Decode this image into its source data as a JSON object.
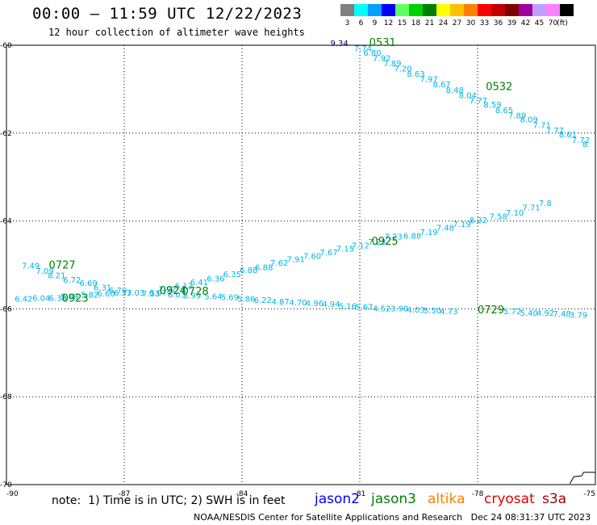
{
  "header": {
    "title": "00:00 – 11:59 UTC 12/22/2023",
    "subtitle": "12 hour collection of altimeter wave heights"
  },
  "colorbar": {
    "unit": "(ft)",
    "bins": [
      {
        "label": "3",
        "color": "#808080"
      },
      {
        "label": "6",
        "color": "#00ffff"
      },
      {
        "label": "9",
        "color": "#00a0ff"
      },
      {
        "label": "12",
        "color": "#0000ff"
      },
      {
        "label": "15",
        "color": "#60ff60"
      },
      {
        "label": "18",
        "color": "#00d000"
      },
      {
        "label": "21",
        "color": "#008000"
      },
      {
        "label": "24",
        "color": "#ffff00"
      },
      {
        "label": "27",
        "color": "#ffc000"
      },
      {
        "label": "30",
        "color": "#ff8000"
      },
      {
        "label": "33",
        "color": "#ff0000"
      },
      {
        "label": "36",
        "color": "#c00000"
      },
      {
        "label": "39",
        "color": "#800000"
      },
      {
        "label": "42",
        "color": "#a000a0"
      },
      {
        "label": "45",
        "color": "#c0a0ff"
      },
      {
        "label": "70",
        "color": "#ff80ff"
      },
      {
        "label": "",
        "color": "#000000"
      }
    ]
  },
  "map": {
    "lon_range": [
      -90,
      -75
    ],
    "lat_range": [
      -70,
      -60
    ],
    "lon_ticks": [
      "-90",
      "-87",
      "-84",
      "-81",
      "-78",
      "-75"
    ],
    "lat_ticks": [
      "-60",
      "-62",
      "-64",
      "-66",
      "-68",
      "-70"
    ],
    "grid": "dotted",
    "colors": {
      "cyan": "#00b4e6",
      "green": "#008000",
      "navy": "#000080"
    }
  },
  "tracks": [
    {
      "name": "0531-0532 track",
      "time_labels": [
        {
          "text": "0531",
          "lon": -80.76,
          "lat": -60.02
        },
        {
          "text": "0532",
          "lon": -77.79,
          "lat": -61.02
        }
      ],
      "first_value": {
        "text": "9.34",
        "lon": -81.75,
        "lat": -60.02,
        "color": "navy"
      },
      "points": [
        {
          "v": "7.74",
          "lon": -81.15,
          "lat": -60.14
        },
        {
          "v": "6.80",
          "lon": -80.91,
          "lat": -60.24
        },
        {
          "v": "7.92",
          "lon": -80.67,
          "lat": -60.36
        },
        {
          "v": "7.89",
          "lon": -80.4,
          "lat": -60.48
        },
        {
          "v": "7.20",
          "lon": -80.13,
          "lat": -60.6
        },
        {
          "v": "8.63",
          "lon": -79.8,
          "lat": -60.72
        },
        {
          "v": "7.97",
          "lon": -79.47,
          "lat": -60.84
        },
        {
          "v": "8.67",
          "lon": -79.14,
          "lat": -60.96
        },
        {
          "v": "8.48",
          "lon": -78.81,
          "lat": -61.08
        },
        {
          "v": "8.04",
          "lon": -78.48,
          "lat": -61.2
        },
        {
          "v": "7.77",
          "lon": -78.21,
          "lat": -61.32
        },
        {
          "v": "8.59",
          "lon": -77.85,
          "lat": -61.42
        },
        {
          "v": "8.65",
          "lon": -77.55,
          "lat": -61.54
        },
        {
          "v": "7.89",
          "lon": -77.22,
          "lat": -61.66
        },
        {
          "v": "8.09",
          "lon": -76.92,
          "lat": -61.76
        },
        {
          "v": "7.71",
          "lon": -76.59,
          "lat": -61.88
        },
        {
          "v": "7.77",
          "lon": -76.26,
          "lat": -62.0
        },
        {
          "v": "8.61",
          "lon": -75.93,
          "lat": -62.1
        },
        {
          "v": "7.72",
          "lon": -75.6,
          "lat": -62.22
        },
        {
          "v": "8.",
          "lon": -75.33,
          "lat": -62.32
        }
      ]
    },
    {
      "name": "0727-0728 track",
      "time_labels": [
        {
          "text": "0727",
          "lon": -88.92,
          "lat": -65.08
        },
        {
          "text": "0728",
          "lon": -85.53,
          "lat": -65.68
        }
      ],
      "points": [
        {
          "v": "7.49",
          "lon": -89.61,
          "lat": -65.08
        },
        {
          "v": "7.09",
          "lon": -89.25,
          "lat": -65.2
        },
        {
          "v": "8.21",
          "lon": -88.95,
          "lat": -65.3
        },
        {
          "v": "6.72",
          "lon": -88.56,
          "lat": -65.4
        },
        {
          "v": "6.69",
          "lon": -88.14,
          "lat": -65.48
        },
        {
          "v": "6.31",
          "lon": -87.78,
          "lat": -65.58
        },
        {
          "v": "6.70",
          "lon": -87.39,
          "lat": -65.64
        },
        {
          "v": "7.03",
          "lon": -86.94,
          "lat": -65.7
        },
        {
          "v": "7.33",
          "lon": -86.55,
          "lat": -65.72
        },
        {
          "v": "7.92",
          "lon": -86.13,
          "lat": -65.62
        },
        {
          "v": "6.12",
          "lon": -85.71,
          "lat": -65.54
        },
        {
          "v": "6.41",
          "lon": -85.32,
          "lat": -65.46
        },
        {
          "v": "6.36",
          "lon": -84.9,
          "lat": -65.38
        },
        {
          "v": "6.35",
          "lon": -84.48,
          "lat": -65.28
        },
        {
          "v": "6.88",
          "lon": -84.06,
          "lat": -65.18
        },
        {
          "v": "6.88",
          "lon": -83.67,
          "lat": -65.12
        },
        {
          "v": "7.62",
          "lon": -83.28,
          "lat": -65.02
        },
        {
          "v": "7.91",
          "lon": -82.86,
          "lat": -64.94
        },
        {
          "v": "7.60",
          "lon": -82.44,
          "lat": -64.86
        },
        {
          "v": "7.67",
          "lon": -82.02,
          "lat": -64.78
        },
        {
          "v": "7.15",
          "lon": -81.6,
          "lat": -64.7
        },
        {
          "v": "7.12",
          "lon": -81.21,
          "lat": -64.62
        },
        {
          "v": "7.23",
          "lon": -80.79,
          "lat": -64.54
        },
        {
          "v": "7.23",
          "lon": -80.37,
          "lat": -64.42
        },
        {
          "v": "6.88",
          "lon": -79.89,
          "lat": -64.4
        },
        {
          "v": "7.19",
          "lon": -79.47,
          "lat": -64.32
        },
        {
          "v": "7.48",
          "lon": -79.05,
          "lat": -64.22
        },
        {
          "v": "7.19",
          "lon": -78.63,
          "lat": -64.14
        },
        {
          "v": "8.22",
          "lon": -78.21,
          "lat": -64.04
        },
        {
          "v": "7.58",
          "lon": -77.7,
          "lat": -63.96
        },
        {
          "v": "7.10",
          "lon": -77.28,
          "lat": -63.88
        },
        {
          "v": "7.71",
          "lon": -76.86,
          "lat": -63.76
        },
        {
          "v": "7.8",
          "lon": -76.44,
          "lat": -63.66
        }
      ]
    },
    {
      "name": "0923-0925 track",
      "time_labels": [
        {
          "text": "0923",
          "lon": -88.59,
          "lat": -65.84
        },
        {
          "text": "0924",
          "lon": -86.1,
          "lat": -65.66
        },
        {
          "text": "0925",
          "lon": -80.7,
          "lat": -64.54
        },
        {
          "text": "0729",
          "lon": -78.0,
          "lat": -66.1
        }
      ],
      "points": [
        {
          "v": "6.42",
          "lon": -89.79,
          "lat": -65.84
        },
        {
          "v": "6.04",
          "lon": -89.34,
          "lat": -65.82
        },
        {
          "v": "6.38",
          "lon": -88.92,
          "lat": -65.82
        },
        {
          "v": "5.89",
          "lon": -88.62,
          "lat": -65.78
        },
        {
          "v": "5.82",
          "lon": -88.11,
          "lat": -65.74
        },
        {
          "v": "6.60",
          "lon": -87.69,
          "lat": -65.72
        },
        {
          "v": "6.33",
          "lon": -87.27,
          "lat": -65.7
        },
        {
          "v": "6.07",
          "lon": -86.37,
          "lat": -65.7
        },
        {
          "v": "6.03",
          "lon": -85.89,
          "lat": -65.74
        },
        {
          "v": "5.99",
          "lon": -85.5,
          "lat": -65.76
        },
        {
          "v": "5.64",
          "lon": -84.96,
          "lat": -65.78
        },
        {
          "v": "5.69",
          "lon": -84.54,
          "lat": -65.8
        },
        {
          "v": "5.86",
          "lon": -84.12,
          "lat": -65.84
        },
        {
          "v": "6.22",
          "lon": -83.7,
          "lat": -65.86
        },
        {
          "v": "4.87",
          "lon": -83.25,
          "lat": -65.9
        },
        {
          "v": "4.70",
          "lon": -82.8,
          "lat": -65.92
        },
        {
          "v": "4.96",
          "lon": -82.38,
          "lat": -65.94
        },
        {
          "v": "4.94",
          "lon": -81.96,
          "lat": -65.96
        },
        {
          "v": "5.16",
          "lon": -81.54,
          "lat": -66.0
        },
        {
          "v": "5.67",
          "lon": -81.12,
          "lat": -66.02
        },
        {
          "v": "4.52",
          "lon": -80.67,
          "lat": -66.06
        },
        {
          "v": "3.90",
          "lon": -80.22,
          "lat": -66.06
        },
        {
          "v": "4.03",
          "lon": -79.8,
          "lat": -66.08
        },
        {
          "v": "5.50",
          "lon": -79.38,
          "lat": -66.1
        },
        {
          "v": "4.73",
          "lon": -78.96,
          "lat": -66.12
        },
        {
          "v": "5.72",
          "lon": -77.34,
          "lat": -66.12
        },
        {
          "v": "5.40",
          "lon": -76.92,
          "lat": -66.16
        },
        {
          "v": "4.92",
          "lon": -76.5,
          "lat": -66.16
        },
        {
          "v": "7.48",
          "lon": -76.08,
          "lat": -66.18
        },
        {
          "v": "3.79",
          "lon": -75.66,
          "lat": -66.2
        }
      ]
    }
  ],
  "footer": {
    "note": "note:  1) Time is in UTC; 2) SWH is in feet",
    "satellites": [
      {
        "name": "jason2",
        "color": "#0000ff"
      },
      {
        "name": "jason3",
        "color": "#008000"
      },
      {
        "name": "altika",
        "color": "#ff8000"
      },
      {
        "name": "cryosat",
        "color": "#e00000"
      },
      {
        "name": "s3a",
        "color": "#a00000"
      }
    ],
    "credit": "NOAA/NESDIS Center for Satellite Applications and Research",
    "timestamp": "Dec 24 08:31:37 UTC 2023"
  }
}
